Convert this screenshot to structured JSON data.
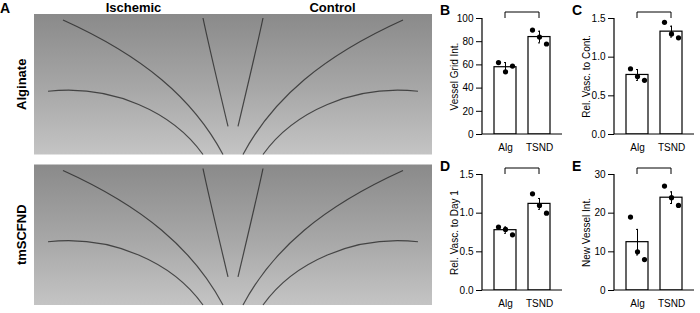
{
  "chart_data": [
    {
      "type": "image",
      "panel_label": "A",
      "column_labels": [
        "Ischemic",
        "Control"
      ],
      "row_labels": [
        "Alginate",
        "tmSCFND"
      ]
    },
    {
      "type": "bar",
      "panel_label": "B",
      "ylabel": "Vessel Grid Int.",
      "categories": [
        "Alg",
        "TSND"
      ],
      "values": [
        58,
        84
      ],
      "errors": [
        4,
        5
      ],
      "points": [
        [
          62,
          54,
          59
        ],
        [
          90,
          84,
          78
        ]
      ],
      "ylim": [
        0,
        100
      ],
      "yticks": [
        0,
        20,
        40,
        60,
        80,
        100
      ],
      "color": "#ffffff"
    },
    {
      "type": "bar",
      "panel_label": "C",
      "ylabel": "Rel. Vasc. to Cont.",
      "categories": [
        "Alg",
        "TSND"
      ],
      "values": [
        0.77,
        1.33
      ],
      "errors": [
        0.07,
        0.07
      ],
      "points": [
        [
          0.85,
          0.75,
          0.7
        ],
        [
          1.45,
          1.3,
          1.25
        ]
      ],
      "ylim": [
        0,
        1.5
      ],
      "yticks": [
        {
          "value": 0,
          "label": "0.0"
        },
        0.5,
        {
          "value": 1,
          "label": "1.0"
        },
        1.5
      ],
      "color": "#ffffff"
    },
    {
      "type": "bar",
      "panel_label": "D",
      "ylabel": "Rel. Vasc. to Day 1",
      "categories": [
        "Alg",
        "TSND"
      ],
      "values": [
        0.78,
        1.12
      ],
      "errors": [
        0.04,
        0.07
      ],
      "points": [
        [
          0.82,
          0.79,
          0.72
        ],
        [
          1.25,
          1.1,
          1.0
        ]
      ],
      "ylim": [
        0,
        1.5
      ],
      "yticks": [
        {
          "value": 0,
          "label": "0.0"
        },
        0.5,
        {
          "value": 1,
          "label": "1.0"
        },
        1.5
      ],
      "color": "#ffffff"
    },
    {
      "type": "bar",
      "panel_label": "E",
      "ylabel": "New Vessel Int.",
      "categories": [
        "Alg",
        "TSND"
      ],
      "values": [
        12.5,
        24
      ],
      "errors": [
        3.3,
        1.5
      ],
      "points": [
        [
          19,
          10,
          8
        ],
        [
          27,
          24,
          22
        ]
      ],
      "ylim": [
        0,
        30
      ],
      "yticks": [
        0,
        10,
        20,
        30
      ],
      "color": "#ffffff"
    }
  ]
}
